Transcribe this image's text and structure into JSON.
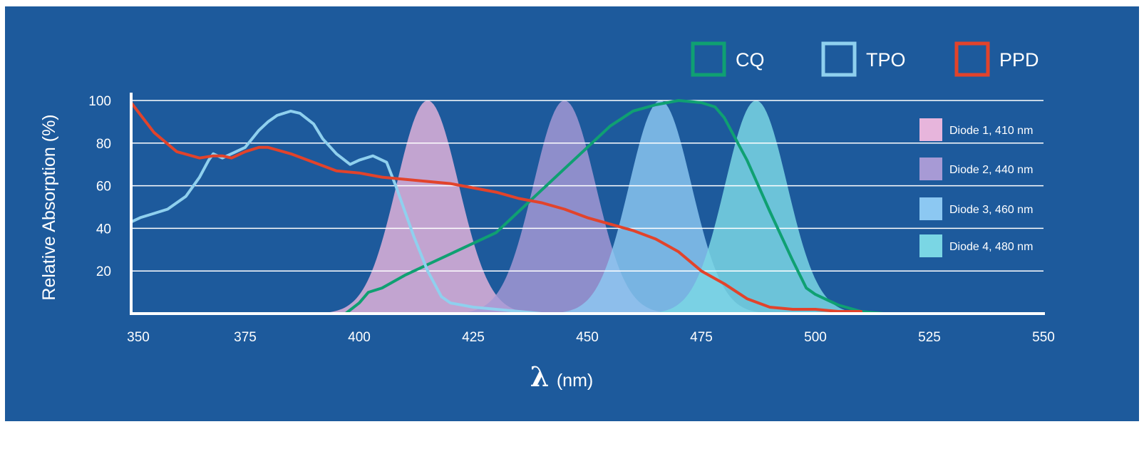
{
  "chart_data": {
    "type": "line",
    "xlabel_symbol": "λ",
    "xlabel_unit": "(nm)",
    "ylabel": "Relative Absorption (%)",
    "xlim": [
      350,
      550
    ],
    "ylim": [
      0,
      100
    ],
    "x_ticks": [
      350,
      375,
      400,
      425,
      450,
      475,
      500,
      525,
      550
    ],
    "y_ticks": [
      20,
      40,
      60,
      80,
      100
    ],
    "grid": true,
    "legend_placement": "top-right",
    "series": [
      {
        "name": "CQ",
        "color": "#0fa072",
        "x": [
          397,
          400,
          402,
          405,
          410,
          415,
          420,
          425,
          430,
          435,
          440,
          445,
          450,
          455,
          460,
          465,
          470,
          475,
          478,
          480,
          485,
          490,
          495,
          498,
          500,
          505,
          510,
          515
        ],
        "y": [
          0,
          5,
          10,
          12,
          18,
          23,
          28,
          33,
          38,
          48,
          58,
          68,
          78,
          88,
          95,
          98,
          100,
          99,
          97,
          92,
          72,
          48,
          25,
          12,
          9,
          4,
          1,
          0
        ]
      },
      {
        "name": "TPO",
        "color": "#8fd0ee",
        "x": [
          350,
          352,
          355,
          358,
          362,
          365,
          367,
          368,
          370,
          375,
          378,
          380,
          382,
          385,
          387,
          390,
          392,
          395,
          398,
          400,
          403,
          406,
          408,
          410,
          412,
          415,
          418,
          420,
          425,
          430,
          435,
          440
        ],
        "y": [
          43,
          45,
          47,
          49,
          55,
          64,
          72,
          75,
          73,
          78,
          86,
          90,
          93,
          95,
          94,
          89,
          82,
          75,
          70,
          72,
          74,
          71,
          60,
          48,
          36,
          20,
          8,
          5,
          3,
          2,
          1,
          0
        ]
      },
      {
        "name": "PPD",
        "color": "#e2432b",
        "x": [
          350,
          355,
          360,
          365,
          368,
          370,
          372,
          375,
          378,
          380,
          385,
          390,
          395,
          400,
          405,
          410,
          415,
          420,
          425,
          430,
          435,
          440,
          445,
          450,
          455,
          460,
          465,
          470,
          475,
          480,
          485,
          490,
          495,
          500,
          505,
          510
        ],
        "y": [
          99,
          85,
          76,
          73,
          74,
          74,
          73,
          76,
          78,
          78,
          75,
          71,
          67,
          66,
          64,
          63,
          62,
          61,
          59,
          57,
          54,
          52,
          49,
          45,
          42,
          39,
          35,
          29,
          20,
          14,
          7,
          3,
          2,
          2,
          1,
          1
        ]
      }
    ],
    "diodes": [
      {
        "label": "Diode 1, 410 nm",
        "peak": 415,
        "width": 6.8,
        "color": "#e7b5dc",
        "opacity": 0.82
      },
      {
        "label": "Diode 2, 440 nm",
        "peak": 445,
        "width": 6.8,
        "color": "#a79ad5",
        "opacity": 0.82
      },
      {
        "label": "Diode 3, 460 nm",
        "peak": 466,
        "width": 6.8,
        "color": "#8cc8f2",
        "opacity": 0.82
      },
      {
        "label": "Diode 4, 480 nm",
        "peak": 487,
        "width": 6.8,
        "color": "#7ad6e4",
        "opacity": 0.85
      }
    ],
    "colors": {
      "background": "#1d5a9c",
      "grid": "#ffffff",
      "axis": "#ffffff"
    }
  }
}
